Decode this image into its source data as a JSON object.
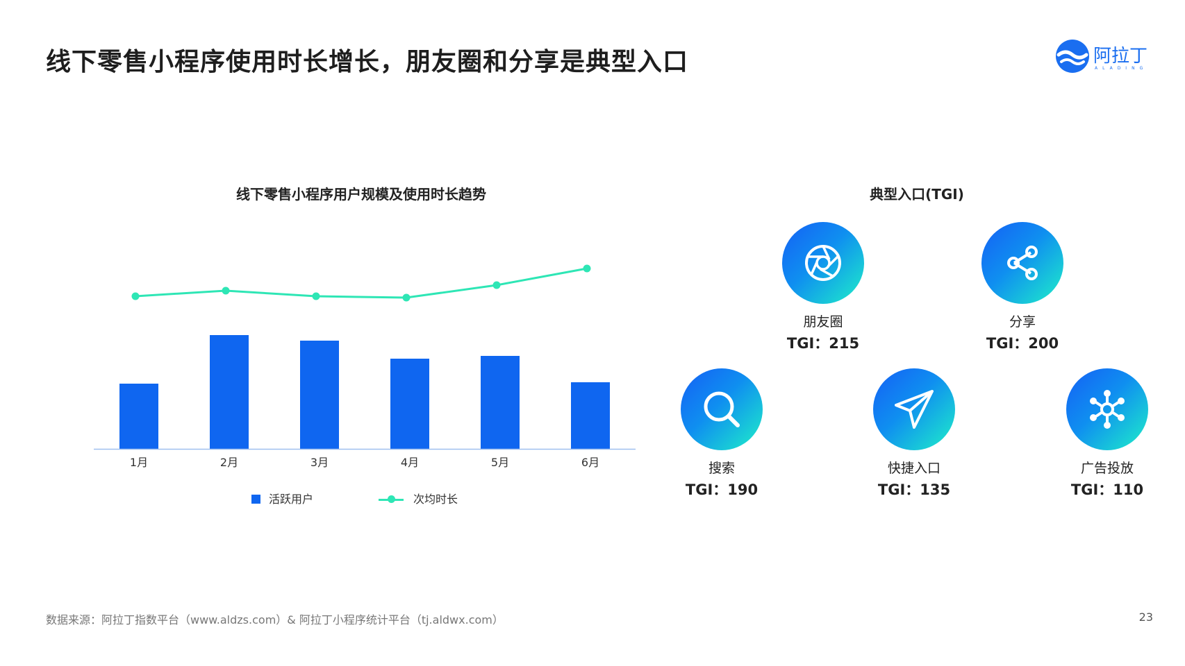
{
  "page": {
    "title": "线下零售小程序使用时长增长，朋友圈和分享是典型入口",
    "logo_text": "阿拉丁",
    "logo_sub": "ALADING",
    "page_number": "23"
  },
  "chart_title": "线下零售小程序用户规模及使用时长趋势",
  "chart_data": {
    "type": "bar",
    "categories": [
      "1月",
      "2月",
      "3月",
      "4月",
      "5月",
      "6月"
    ],
    "series": [
      {
        "name": "活跃用户",
        "type": "bar",
        "color": "#0f66f0",
        "values": [
          47,
          82,
          78,
          65,
          67,
          48
        ]
      },
      {
        "name": "次均时长",
        "type": "line",
        "color": "#2ee6b5",
        "values": [
          110,
          114,
          110,
          109,
          118,
          130
        ]
      }
    ],
    "ylim": [
      0,
      170
    ],
    "grid": false,
    "legend": "bottom"
  },
  "entry": {
    "title": "典型入口(TGI)",
    "items": [
      {
        "label": "朋友圈",
        "tgi": "TGI：215",
        "icon": "aperture-icon"
      },
      {
        "label": "分享",
        "tgi": "TGI：200",
        "icon": "share-icon"
      },
      {
        "label": "搜索",
        "tgi": "TGI：190",
        "icon": "search-icon"
      },
      {
        "label": "快捷入口",
        "tgi": "TGI：135",
        "icon": "paper-plane-icon"
      },
      {
        "label": "广告投放",
        "tgi": "TGI：110",
        "icon": "network-icon"
      }
    ],
    "gradient": [
      "#1560f5",
      "#1ff0c8"
    ]
  },
  "footer": {
    "source": "数据来源：阿拉丁指数平台（www.aldzs.com）& 阿拉丁小程序统计平台（tj.aldwx.com）"
  }
}
